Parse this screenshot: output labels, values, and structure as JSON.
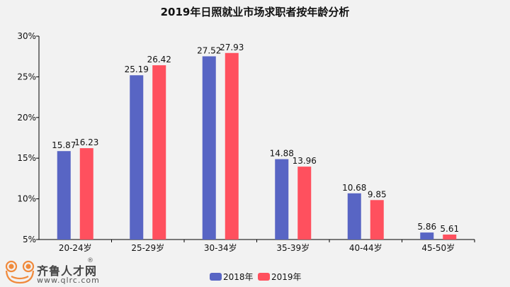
{
  "chart_data": {
    "type": "bar",
    "title": "2019年日照就业市场求职者按年龄分析",
    "categories": [
      "20-24岁",
      "25-29岁",
      "30-34岁",
      "35-39岁",
      "40-44岁",
      "45-50岁"
    ],
    "series": [
      {
        "name": "2018年",
        "color": "#5865c4",
        "values": [
          15.87,
          25.19,
          27.52,
          14.88,
          10.68,
          5.86
        ],
        "labels": [
          "15.87",
          "25.19",
          "27.52",
          "14.88",
          "10.68",
          "5.86"
        ]
      },
      {
        "name": "2019年",
        "color": "#ff505e",
        "values": [
          16.23,
          26.42,
          27.93,
          13.96,
          9.85,
          5.61
        ],
        "labels": [
          "16.23",
          "26.42",
          "27.93",
          "13.96",
          "9.85",
          "5.61"
        ]
      }
    ],
    "ylim": [
      5,
      30
    ],
    "yticks": [
      5,
      10,
      15,
      20,
      25,
      30
    ],
    "ytick_labels": [
      "5%",
      "10%",
      "15%",
      "20%",
      "25%",
      "30%"
    ],
    "legend_position": "bottom-center",
    "xlabel": "",
    "ylabel": "",
    "grid": false
  },
  "logo": {
    "name": "齐鲁人才网",
    "reg": "®",
    "url": "www.qlrc.com"
  }
}
